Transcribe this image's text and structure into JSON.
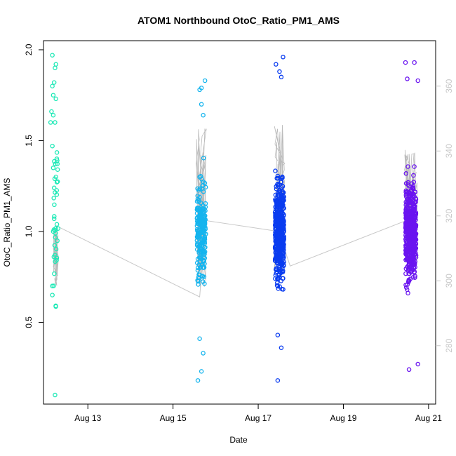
{
  "chart_data": {
    "type": "scatter",
    "title": "ATOM1 Northbound OtoC_Ratio_PM1_AMS",
    "xlabel": "Date",
    "ylabel": "OtoC_Ratio_PM1_AMS",
    "x_ticks": [
      {
        "value": "2024-08-13",
        "label": "Aug 13"
      },
      {
        "value": "2024-08-15",
        "label": "Aug 15"
      },
      {
        "value": "2024-08-17",
        "label": "Aug 17"
      },
      {
        "value": "2024-08-19",
        "label": "Aug 19"
      },
      {
        "value": "2024-08-21",
        "label": "Aug 21"
      }
    ],
    "xlim": [
      "2024-08-11T23:00",
      "2024-08-21T04:00"
    ],
    "ylim": [
      0.05,
      2.05
    ],
    "y_ticks": [
      0.5,
      1.0,
      1.5,
      2.0
    ],
    "y_tick_labels": [
      "0.5",
      "1.0",
      "1.5",
      "2.0"
    ],
    "right_axis": {
      "ylim": [
        262,
        374
      ],
      "ticks": [
        280,
        300,
        320,
        340,
        360
      ],
      "tick_labels": [
        "280",
        "300",
        "320",
        "340",
        "360"
      ],
      "color": "#c8c8c8"
    },
    "grid": false,
    "legend": "none",
    "series": [
      {
        "color": "#1de9b6",
        "x_center": "2024-08-12T06:00",
        "spread_hours": 2.5,
        "count": 55,
        "line_range": [
          0.7,
          1.02
        ],
        "points": [
          {
            "x": "2024-08-12T04:00",
            "y": 1.97
          },
          {
            "x": "2024-08-12T06:00",
            "y": 1.92
          },
          {
            "x": "2024-08-12T05:30",
            "y": 1.9
          },
          {
            "x": "2024-08-12T04:00",
            "y": 1.8
          },
          {
            "x": "2024-08-12T05:00",
            "y": 1.82
          },
          {
            "x": "2024-08-12T04:30",
            "y": 1.75
          },
          {
            "x": "2024-08-12T06:00",
            "y": 1.73
          },
          {
            "x": "2024-08-12T03:30",
            "y": 1.66
          },
          {
            "x": "2024-08-12T04:30",
            "y": 1.64
          },
          {
            "x": "2024-08-12T03:00",
            "y": 1.6
          },
          {
            "x": "2024-08-12T05:30",
            "y": 1.6
          },
          {
            "x": "2024-08-12T04:00",
            "y": 1.47
          },
          {
            "x": "2024-08-12T06:30",
            "y": 1.4
          },
          {
            "x": "2024-08-12T04:30",
            "y": 1.35
          },
          {
            "x": "2024-08-12T06:00",
            "y": 1.3
          },
          {
            "x": "2024-08-12T05:00",
            "y": 1.24
          },
          {
            "x": "2024-08-12T04:30",
            "y": 1.0
          },
          {
            "x": "2024-08-12T05:00",
            "y": 1.07
          },
          {
            "x": "2024-08-12T05:30",
            "y": 0.87
          },
          {
            "x": "2024-08-12T04:00",
            "y": 0.7
          },
          {
            "x": "2024-08-12T04:00",
            "y": 0.65
          },
          {
            "x": "2024-08-12T05:30",
            "y": 0.1
          }
        ]
      },
      {
        "color": "#14b4ee",
        "x_center": "2024-08-15T16:00",
        "spread_hours": 5,
        "count": 230,
        "line_range": [
          0.68,
          1.6
        ],
        "points": [
          {
            "x": "2024-08-15T18:00",
            "y": 1.83
          },
          {
            "x": "2024-08-15T16:00",
            "y": 1.79
          },
          {
            "x": "2024-08-15T15:00",
            "y": 1.78
          },
          {
            "x": "2024-08-15T16:00",
            "y": 1.7
          },
          {
            "x": "2024-08-15T17:00",
            "y": 1.64
          },
          {
            "x": "2024-08-15T15:00",
            "y": 1.3
          },
          {
            "x": "2024-08-15T16:00",
            "y": 0.23
          },
          {
            "x": "2024-08-15T14:00",
            "y": 0.18
          },
          {
            "x": "2024-08-15T17:00",
            "y": 0.33
          },
          {
            "x": "2024-08-15T15:00",
            "y": 0.41
          }
        ]
      },
      {
        "color": "#0a3cf0",
        "x_center": "2024-08-17T12:00",
        "spread_hours": 5,
        "count": 480,
        "line_range": [
          0.74,
          1.6
        ],
        "points": [
          {
            "x": "2024-08-17T14:00",
            "y": 1.96
          },
          {
            "x": "2024-08-17T10:00",
            "y": 1.92
          },
          {
            "x": "2024-08-17T12:00",
            "y": 1.88
          },
          {
            "x": "2024-08-17T13:00",
            "y": 1.85
          },
          {
            "x": "2024-08-17T11:00",
            "y": 0.43
          },
          {
            "x": "2024-08-17T13:00",
            "y": 0.36
          },
          {
            "x": "2024-08-17T11:00",
            "y": 0.18
          }
        ]
      },
      {
        "color": "#6a14f0",
        "x_center": "2024-08-20T14:00",
        "spread_hours": 6,
        "count": 520,
        "line_range": [
          0.8,
          1.45
        ],
        "points": [
          {
            "x": "2024-08-20T11:00",
            "y": 1.93
          },
          {
            "x": "2024-08-20T16:00",
            "y": 1.93
          },
          {
            "x": "2024-08-20T12:00",
            "y": 1.84
          },
          {
            "x": "2024-08-20T18:00",
            "y": 1.83
          },
          {
            "x": "2024-08-20T13:00",
            "y": 0.24
          },
          {
            "x": "2024-08-20T18:00",
            "y": 0.27
          }
        ]
      }
    ],
    "connector": [
      {
        "x": "2024-08-12T06:30",
        "y": 1.03
      },
      {
        "x": "2024-08-15T15:00",
        "y": 0.64
      },
      {
        "x": "2024-08-15T18:30",
        "y": 1.06
      },
      {
        "x": "2024-08-17T11:30",
        "y": 1.0
      },
      {
        "x": "2024-08-17T18:00",
        "y": 0.81
      },
      {
        "x": "2024-08-20T14:00",
        "y": 1.07
      }
    ]
  }
}
